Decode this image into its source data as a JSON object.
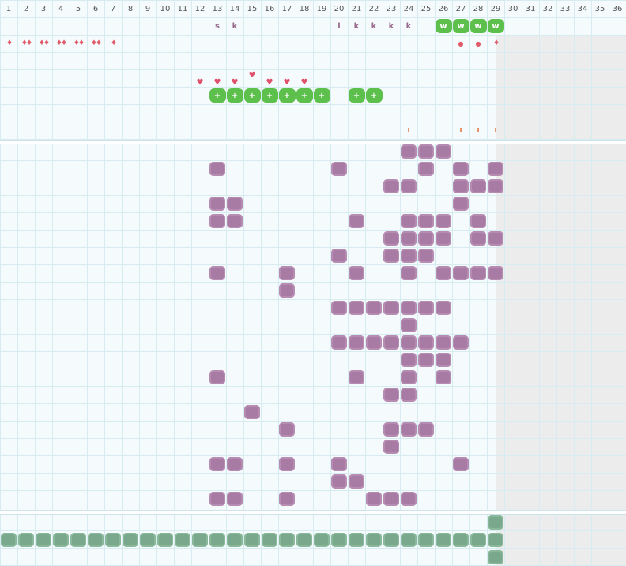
{
  "columns": [
    "1",
    "2",
    "3",
    "4",
    "5",
    "6",
    "7",
    "8",
    "9",
    "10",
    "11",
    "12",
    "13",
    "14",
    "15",
    "16",
    "17",
    "18",
    "19",
    "20",
    "21",
    "22",
    "23",
    "24",
    "25",
    "26",
    "27",
    "28",
    "29",
    "30",
    "31",
    "32",
    "33",
    "34",
    "35",
    "36"
  ],
  "colors": {
    "grid_line": "#d6ecf1",
    "purple_mark": "#a87ba4",
    "green_mark": "#7aa88c",
    "badge_green": "#5dbf4c",
    "red_symbol": "#e05c6a",
    "orange_tick": "#e0774a",
    "shaded_region": "#ececec"
  },
  "letters_row": [
    {
      "col": 13,
      "text": "s"
    },
    {
      "col": 14,
      "text": "k"
    },
    {
      "col": 20,
      "text": "l"
    },
    {
      "col": 21,
      "text": "k"
    },
    {
      "col": 22,
      "text": "k"
    },
    {
      "col": 23,
      "text": "k"
    },
    {
      "col": 24,
      "text": "k"
    }
  ],
  "w_badges": {
    "cols": [
      26,
      27,
      28,
      29
    ],
    "text": "w"
  },
  "drops": [
    {
      "col": 1,
      "text": "♦"
    },
    {
      "col": 2,
      "text": "♦♦"
    },
    {
      "col": 3,
      "text": "♦♦"
    },
    {
      "col": 4,
      "text": "♦♦"
    },
    {
      "col": 5,
      "text": "♦♦"
    },
    {
      "col": 6,
      "text": "♦♦"
    },
    {
      "col": 7,
      "text": "♦"
    },
    {
      "col": 29,
      "text": "♦"
    }
  ],
  "dots": [
    {
      "col": 27,
      "text": "●"
    },
    {
      "col": 28,
      "text": "●"
    }
  ],
  "hearts": [
    {
      "col": 12,
      "text": "♥"
    },
    {
      "col": 13,
      "text": "♥"
    },
    {
      "col": 14,
      "text": "♥"
    },
    {
      "col": 15,
      "text": "♥"
    },
    {
      "col": 16,
      "text": "♥"
    },
    {
      "col": 17,
      "text": "♥"
    },
    {
      "col": 18,
      "text": "♥"
    }
  ],
  "plus_badges": {
    "cols": [
      13,
      14,
      15,
      16,
      17,
      18,
      19,
      21,
      22
    ],
    "text": "+"
  },
  "ticks": [
    {
      "col": 24,
      "text": "ı"
    },
    {
      "col": 27,
      "text": "ı"
    },
    {
      "col": 28,
      "text": "ı"
    },
    {
      "col": 29,
      "text": "ı"
    }
  ],
  "purple_rows": [
    [
      24,
      25,
      26
    ],
    [
      13,
      20,
      25,
      27,
      29
    ],
    [
      23,
      24,
      27,
      28,
      29
    ],
    [
      13,
      14,
      27
    ],
    [
      13,
      14,
      21,
      24,
      25,
      26,
      28
    ],
    [
      23,
      24,
      25,
      26,
      28,
      29
    ],
    [
      20,
      23,
      24,
      25
    ],
    [
      13,
      17,
      21,
      24,
      26,
      27,
      28,
      29
    ],
    [
      17
    ],
    [
      20,
      21,
      22,
      23,
      24,
      25,
      26
    ],
    [
      24
    ],
    [
      20,
      21,
      22,
      23,
      24,
      25,
      26,
      27
    ],
    [
      24,
      25,
      26
    ],
    [
      13,
      21,
      24,
      26
    ],
    [
      23,
      24
    ],
    [
      15
    ],
    [
      17,
      23,
      24,
      25
    ],
    [
      23
    ],
    [
      13,
      14,
      17,
      20,
      27
    ],
    [
      20,
      21
    ],
    [
      13,
      14,
      17,
      22,
      23,
      24
    ]
  ],
  "green_bottom": {
    "row_cols_main": [
      1,
      2,
      3,
      4,
      5,
      6,
      7,
      8,
      9,
      10,
      11,
      12,
      13,
      14,
      15,
      16,
      17,
      18,
      19,
      20,
      21,
      22,
      23,
      24,
      25,
      26,
      27,
      28,
      29
    ],
    "extra_col": 29
  }
}
